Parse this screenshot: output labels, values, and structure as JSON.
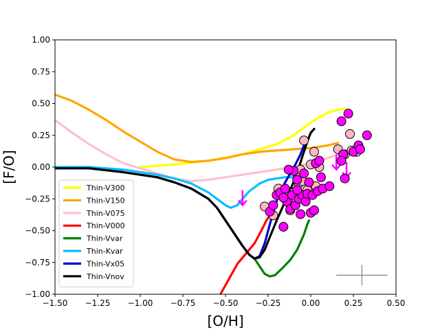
{
  "chart_data": {
    "type": "line",
    "title": "",
    "xlabel": "[O/H]",
    "ylabel": "[F/O]",
    "xlim": [
      -1.5,
      0.5
    ],
    "ylim": [
      -1.0,
      1.0
    ],
    "xticks": [
      "−1.50",
      "−1.25",
      "−1.00",
      "−0.75",
      "−0.50",
      "−0.25",
      "0.00",
      "0.25",
      "0.50"
    ],
    "yticks": [
      "−1.00",
      "−0.75",
      "−0.50",
      "−0.25",
      "0.00",
      "0.25",
      "0.50",
      "0.75",
      "1.00"
    ],
    "xtick_values": [
      -1.5,
      -1.25,
      -1.0,
      -0.75,
      -0.5,
      -0.25,
      0.0,
      0.25,
      0.5
    ],
    "ytick_values": [
      -1.0,
      -0.75,
      -0.5,
      -0.25,
      0.0,
      0.25,
      0.5,
      0.75,
      1.0
    ],
    "legend_position": "lower-left",
    "series": [
      {
        "name": "Thin-V300",
        "color": "#ffff00",
        "x": [
          -1.0,
          -0.8,
          -0.6,
          -0.4,
          -0.2,
          -0.1,
          0.0,
          0.1,
          0.2
        ],
        "y": [
          0.0,
          0.02,
          0.05,
          0.1,
          0.18,
          0.25,
          0.35,
          0.43,
          0.46
        ]
      },
      {
        "name": "Thin-V150",
        "color": "#ffa500",
        "x": [
          -1.5,
          -1.4,
          -1.3,
          -1.2,
          -1.1,
          -1.0,
          -0.9,
          -0.8,
          -0.7,
          -0.6,
          -0.5,
          -0.4,
          -0.3,
          -0.2,
          -0.1,
          0.0,
          0.1,
          0.16
        ],
        "y": [
          0.57,
          0.52,
          0.45,
          0.37,
          0.28,
          0.2,
          0.12,
          0.06,
          0.04,
          0.05,
          0.07,
          0.1,
          0.12,
          0.13,
          0.14,
          0.15,
          0.17,
          0.19
        ]
      },
      {
        "name": "Thin-V075",
        "color": "#ffc0cb",
        "x": [
          -1.5,
          -1.4,
          -1.3,
          -1.2,
          -1.1,
          -1.0,
          -0.9,
          -0.8,
          -0.7,
          -0.6,
          -0.5,
          -0.4,
          -0.3,
          -0.2,
          -0.1,
          0.0,
          0.1,
          0.16
        ],
        "y": [
          0.37,
          0.27,
          0.18,
          0.1,
          0.03,
          -0.01,
          -0.05,
          -0.09,
          -0.11,
          -0.1,
          -0.08,
          -0.06,
          -0.04,
          -0.02,
          0.0,
          0.03,
          0.07,
          0.1
        ]
      },
      {
        "name": "Thin-V000",
        "color": "#ff0000",
        "x": [
          -0.53,
          -0.48,
          -0.43,
          -0.38,
          -0.33,
          -0.29,
          -0.26,
          -0.24,
          -0.22,
          -0.21
        ],
        "y": [
          -1.0,
          -0.88,
          -0.76,
          -0.68,
          -0.6,
          -0.5,
          -0.42,
          -0.38,
          -0.36,
          -0.35
        ]
      },
      {
        "name": "Thin-Vvar",
        "color": "#008000",
        "x": [
          -0.33,
          -0.3,
          -0.27,
          -0.24,
          -0.21,
          -0.17,
          -0.12,
          -0.08,
          -0.04,
          -0.02,
          -0.01
        ],
        "y": [
          -0.72,
          -0.78,
          -0.84,
          -0.86,
          -0.85,
          -0.8,
          -0.73,
          -0.65,
          -0.53,
          -0.45,
          -0.42
        ]
      },
      {
        "name": "Thin-Kvar",
        "color": "#00bfff",
        "x": [
          -1.5,
          -1.3,
          -1.1,
          -0.9,
          -0.8,
          -0.7,
          -0.6,
          -0.55,
          -0.5,
          -0.47,
          -0.43,
          -0.4,
          -0.36,
          -0.3,
          -0.25,
          -0.2,
          -0.15,
          -0.1,
          -0.05,
          0.0
        ],
        "y": [
          0.0,
          0.0,
          -0.02,
          -0.06,
          -0.09,
          -0.13,
          -0.2,
          -0.25,
          -0.3,
          -0.32,
          -0.3,
          -0.25,
          -0.19,
          -0.13,
          -0.1,
          -0.09,
          -0.08,
          -0.08,
          -0.09,
          -0.1
        ]
      },
      {
        "name": "Thin-Vx05",
        "color": "#0000cd",
        "x": [
          -1.5,
          -1.3,
          -1.1,
          -0.9,
          -0.8,
          -0.7,
          -0.6,
          -0.55,
          -0.5,
          -0.45,
          -0.4,
          -0.36,
          -0.33,
          -0.3,
          -0.27,
          -0.24,
          -0.21,
          -0.18,
          -0.15,
          -0.12,
          -0.09,
          -0.06,
          -0.04,
          -0.02
        ],
        "y": [
          -0.01,
          -0.01,
          -0.04,
          -0.08,
          -0.12,
          -0.17,
          -0.25,
          -0.32,
          -0.42,
          -0.52,
          -0.62,
          -0.69,
          -0.72,
          -0.7,
          -0.6,
          -0.45,
          -0.3,
          -0.2,
          -0.12,
          -0.05,
          0.02,
          0.1,
          0.17,
          0.22
        ]
      },
      {
        "name": "Thin-Vnov",
        "color": "#000000",
        "x": [
          -1.5,
          -1.3,
          -1.1,
          -0.9,
          -0.8,
          -0.7,
          -0.6,
          -0.55,
          -0.5,
          -0.45,
          -0.4,
          -0.36,
          -0.33,
          -0.3,
          -0.27,
          -0.24,
          -0.2,
          -0.16,
          -0.12,
          -0.08,
          -0.05,
          -0.02,
          0.0,
          0.02
        ],
        "y": [
          -0.01,
          -0.01,
          -0.04,
          -0.08,
          -0.12,
          -0.17,
          -0.25,
          -0.32,
          -0.42,
          -0.52,
          -0.62,
          -0.69,
          -0.72,
          -0.71,
          -0.65,
          -0.55,
          -0.42,
          -0.3,
          -0.18,
          -0.05,
          0.08,
          0.2,
          0.27,
          0.3
        ]
      }
    ],
    "scatter": [
      {
        "name": "pink-stars",
        "color": "#ffb6c1",
        "x": [
          -0.27,
          -0.19,
          -0.17,
          -0.13,
          -0.1,
          -0.08,
          -0.07,
          -0.05,
          -0.04,
          -0.02,
          0.0,
          0.02,
          0.05,
          -0.15,
          -0.12,
          -0.22,
          0.16,
          0.2,
          0.24,
          0.23,
          0.27,
          -0.06,
          0.03
        ],
        "y": [
          -0.31,
          -0.17,
          -0.22,
          -0.28,
          -0.2,
          -0.05,
          -0.13,
          -0.11,
          0.21,
          -0.18,
          0.02,
          0.12,
          0.0,
          -0.25,
          -0.34,
          -0.38,
          0.14,
          0.1,
          0.13,
          0.26,
          0.12,
          -0.02,
          -0.15
        ]
      },
      {
        "name": "magenta-stars",
        "color": "#ff00ff",
        "x": [
          -0.24,
          -0.22,
          -0.2,
          -0.18,
          -0.16,
          -0.15,
          -0.14,
          -0.12,
          -0.11,
          -0.1,
          -0.09,
          -0.08,
          -0.07,
          -0.06,
          -0.05,
          -0.04,
          -0.03,
          -0.02,
          -0.01,
          0.0,
          0.01,
          0.02,
          0.03,
          0.04,
          0.05,
          0.06,
          0.07,
          0.11,
          0.18,
          0.19,
          0.2,
          0.22,
          0.25,
          0.28,
          0.29,
          0.33,
          -0.16,
          -0.13,
          -0.08,
          0.18
        ],
        "y": [
          -0.35,
          -0.3,
          -0.22,
          -0.2,
          -0.47,
          -0.17,
          -0.27,
          -0.33,
          -0.22,
          -0.03,
          -0.3,
          -0.1,
          -0.25,
          -0.37,
          -0.22,
          -0.05,
          -0.27,
          -0.21,
          -0.12,
          -0.36,
          -0.22,
          -0.34,
          0.03,
          -0.19,
          0.05,
          -0.08,
          -0.17,
          -0.15,
          0.36,
          0.1,
          -0.09,
          0.42,
          0.12,
          0.17,
          0.14,
          0.25,
          -0.24,
          -0.02,
          -0.18,
          0.05
        ]
      }
    ],
    "upper_limits": [
      {
        "color": "#ff00ff",
        "x": [
          -0.4,
          -0.23,
          0.15,
          0.21
        ],
        "y": [
          -0.3,
          -0.4,
          -0.02,
          -0.08
        ]
      }
    ],
    "error_bar": {
      "x": 0.3,
      "y": -0.85,
      "xerr": 0.15,
      "yerr": 0.08,
      "color": "#808080"
    }
  }
}
